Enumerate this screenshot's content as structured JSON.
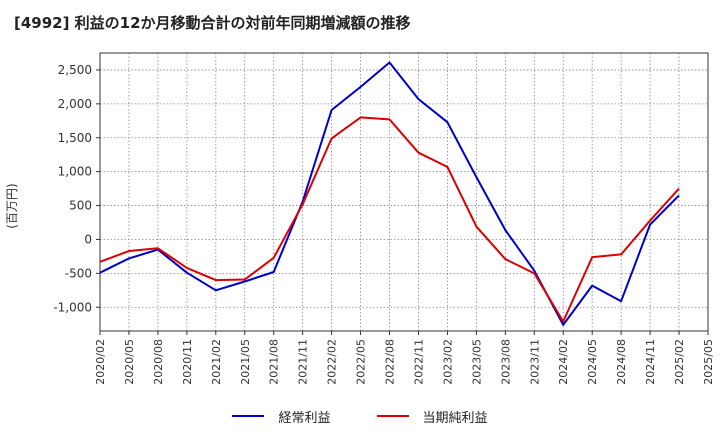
{
  "chart_data": {
    "type": "line",
    "title": "[4992]  利益の12か月移動合計の対前年同期増減額の推移",
    "ylabel": "(百万円)",
    "xlabel": "",
    "ylim": [
      -1350,
      2750
    ],
    "yticks": [
      -1000,
      -500,
      0,
      500,
      1000,
      1500,
      2000,
      2500
    ],
    "ytick_labels": [
      "-1,000",
      "-500",
      "0",
      "500",
      "1,000",
      "1,500",
      "2,000",
      "2,500"
    ],
    "x": [
      "2020/02",
      "2020/05",
      "2020/08",
      "2020/11",
      "2021/02",
      "2021/05",
      "2021/08",
      "2021/11",
      "2022/02",
      "2022/05",
      "2022/08",
      "2022/11",
      "2023/02",
      "2023/05",
      "2023/08",
      "2023/11",
      "2024/02",
      "2024/05",
      "2024/08",
      "2024/11",
      "2025/02",
      "2025/05"
    ],
    "series": [
      {
        "name": "経常利益",
        "color": "#0000cc",
        "values": [
          -490,
          -280,
          -150,
          -490,
          -750,
          -620,
          -480,
          560,
          1910,
          2250,
          2610,
          2070,
          1730,
          920,
          140,
          -460,
          -1260,
          -680,
          -910,
          220,
          650,
          null
        ]
      },
      {
        "name": "当期純利益",
        "color": "#dd0000",
        "values": [
          -330,
          -170,
          -130,
          -420,
          -600,
          -590,
          -270,
          520,
          1490,
          1800,
          1770,
          1280,
          1070,
          190,
          -290,
          -500,
          -1210,
          -260,
          -220,
          280,
          750,
          null
        ]
      }
    ],
    "grid": true,
    "legend_position": "bottom-center"
  }
}
